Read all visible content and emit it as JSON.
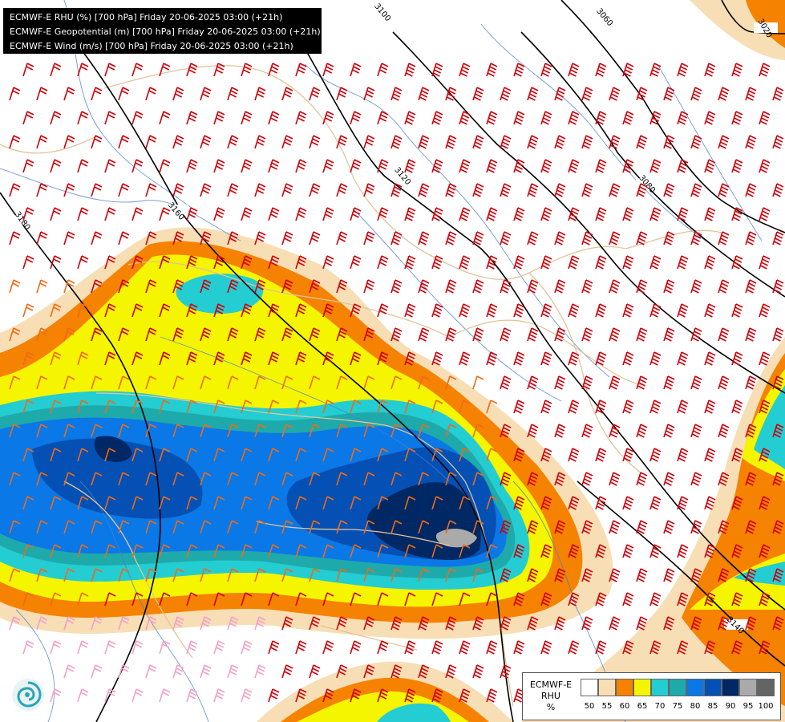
{
  "header": {
    "lines": [
      "ECMWF-E RHU (%) [700 hPa] Friday 20-06-2025 03:00 (+21h)",
      "ECMWF-E Geopotential (m) [700 hPa] Friday 20-06-2025 03:00 (+21h)",
      "ECMWF-E Wind (m/s) [700 hPa] Friday 20-06-2025 03:00 (+21h)"
    ]
  },
  "legend": {
    "line1": "ECMWF-E",
    "line2": "RHU",
    "line3": "%",
    "levels": [
      "50",
      "55",
      "60",
      "65",
      "70",
      "75",
      "80",
      "85",
      "90",
      "95",
      "100"
    ],
    "colors": [
      "#ffffff",
      "#f7deb4",
      "#f58200",
      "#f5f500",
      "#23cdd2",
      "#1eaaaa",
      "#0a78e6",
      "#0550b4",
      "#002864",
      "#aaaaaa",
      "#646464"
    ]
  },
  "contours": {
    "labels": [
      "3180",
      "3160",
      "3120",
      "3100",
      "3080",
      "3060",
      "3020",
      "3140"
    ]
  },
  "colors": {
    "background": "#ffffff",
    "contour": "#000000",
    "border": "#e0c49a",
    "river": "#4a7fd0",
    "barb_strong": "#d0000a",
    "barb_moderate": "#f06a14",
    "barb_weak": "#f2a0c8"
  },
  "icons": {
    "logo": "ecmwf-swirl-icon"
  }
}
